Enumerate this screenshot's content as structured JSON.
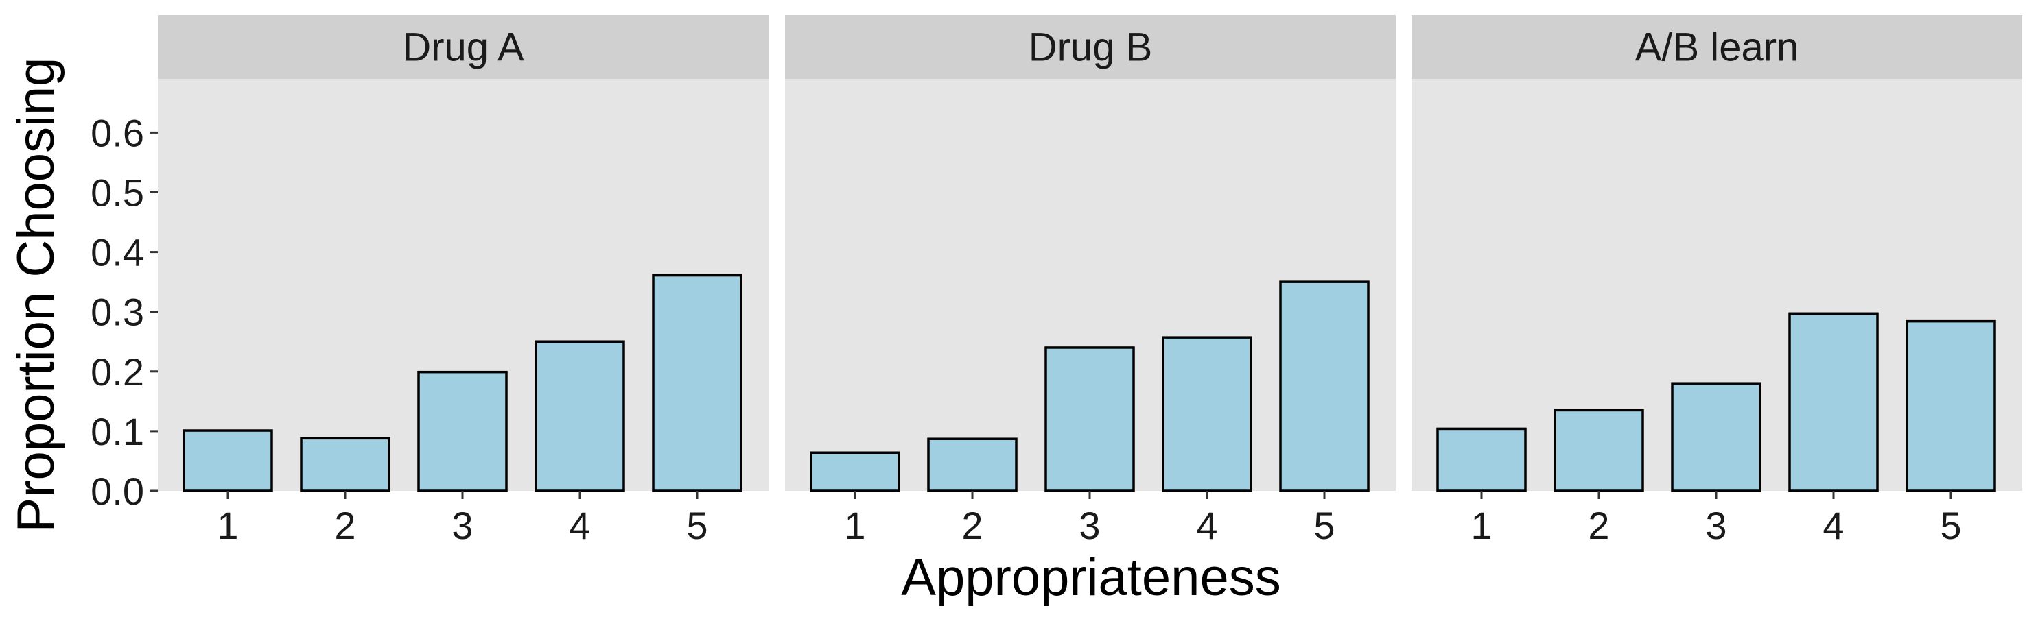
{
  "chart_data": {
    "type": "bar",
    "xlabel": "Appropriateness",
    "ylabel": "Proportion Choosing",
    "ylim": [
      0,
      0.69
    ],
    "yticks": [
      "0.0",
      "0.1",
      "0.2",
      "0.3",
      "0.4",
      "0.5",
      "0.6"
    ],
    "categories": [
      "1",
      "2",
      "3",
      "4",
      "5"
    ],
    "grid": false,
    "colors": {
      "bar_fill": "#9fcfe0",
      "panel_bg": "#e5e5e5",
      "strip_bg": "#d0d0d0"
    },
    "panels": [
      {
        "title": "Drug A",
        "values": [
          0.101,
          0.088,
          0.199,
          0.25,
          0.361
        ]
      },
      {
        "title": "Drug B",
        "values": [
          0.064,
          0.087,
          0.24,
          0.257,
          0.35
        ]
      },
      {
        "title": "A/B learn",
        "values": [
          0.104,
          0.135,
          0.18,
          0.297,
          0.284
        ]
      }
    ]
  }
}
